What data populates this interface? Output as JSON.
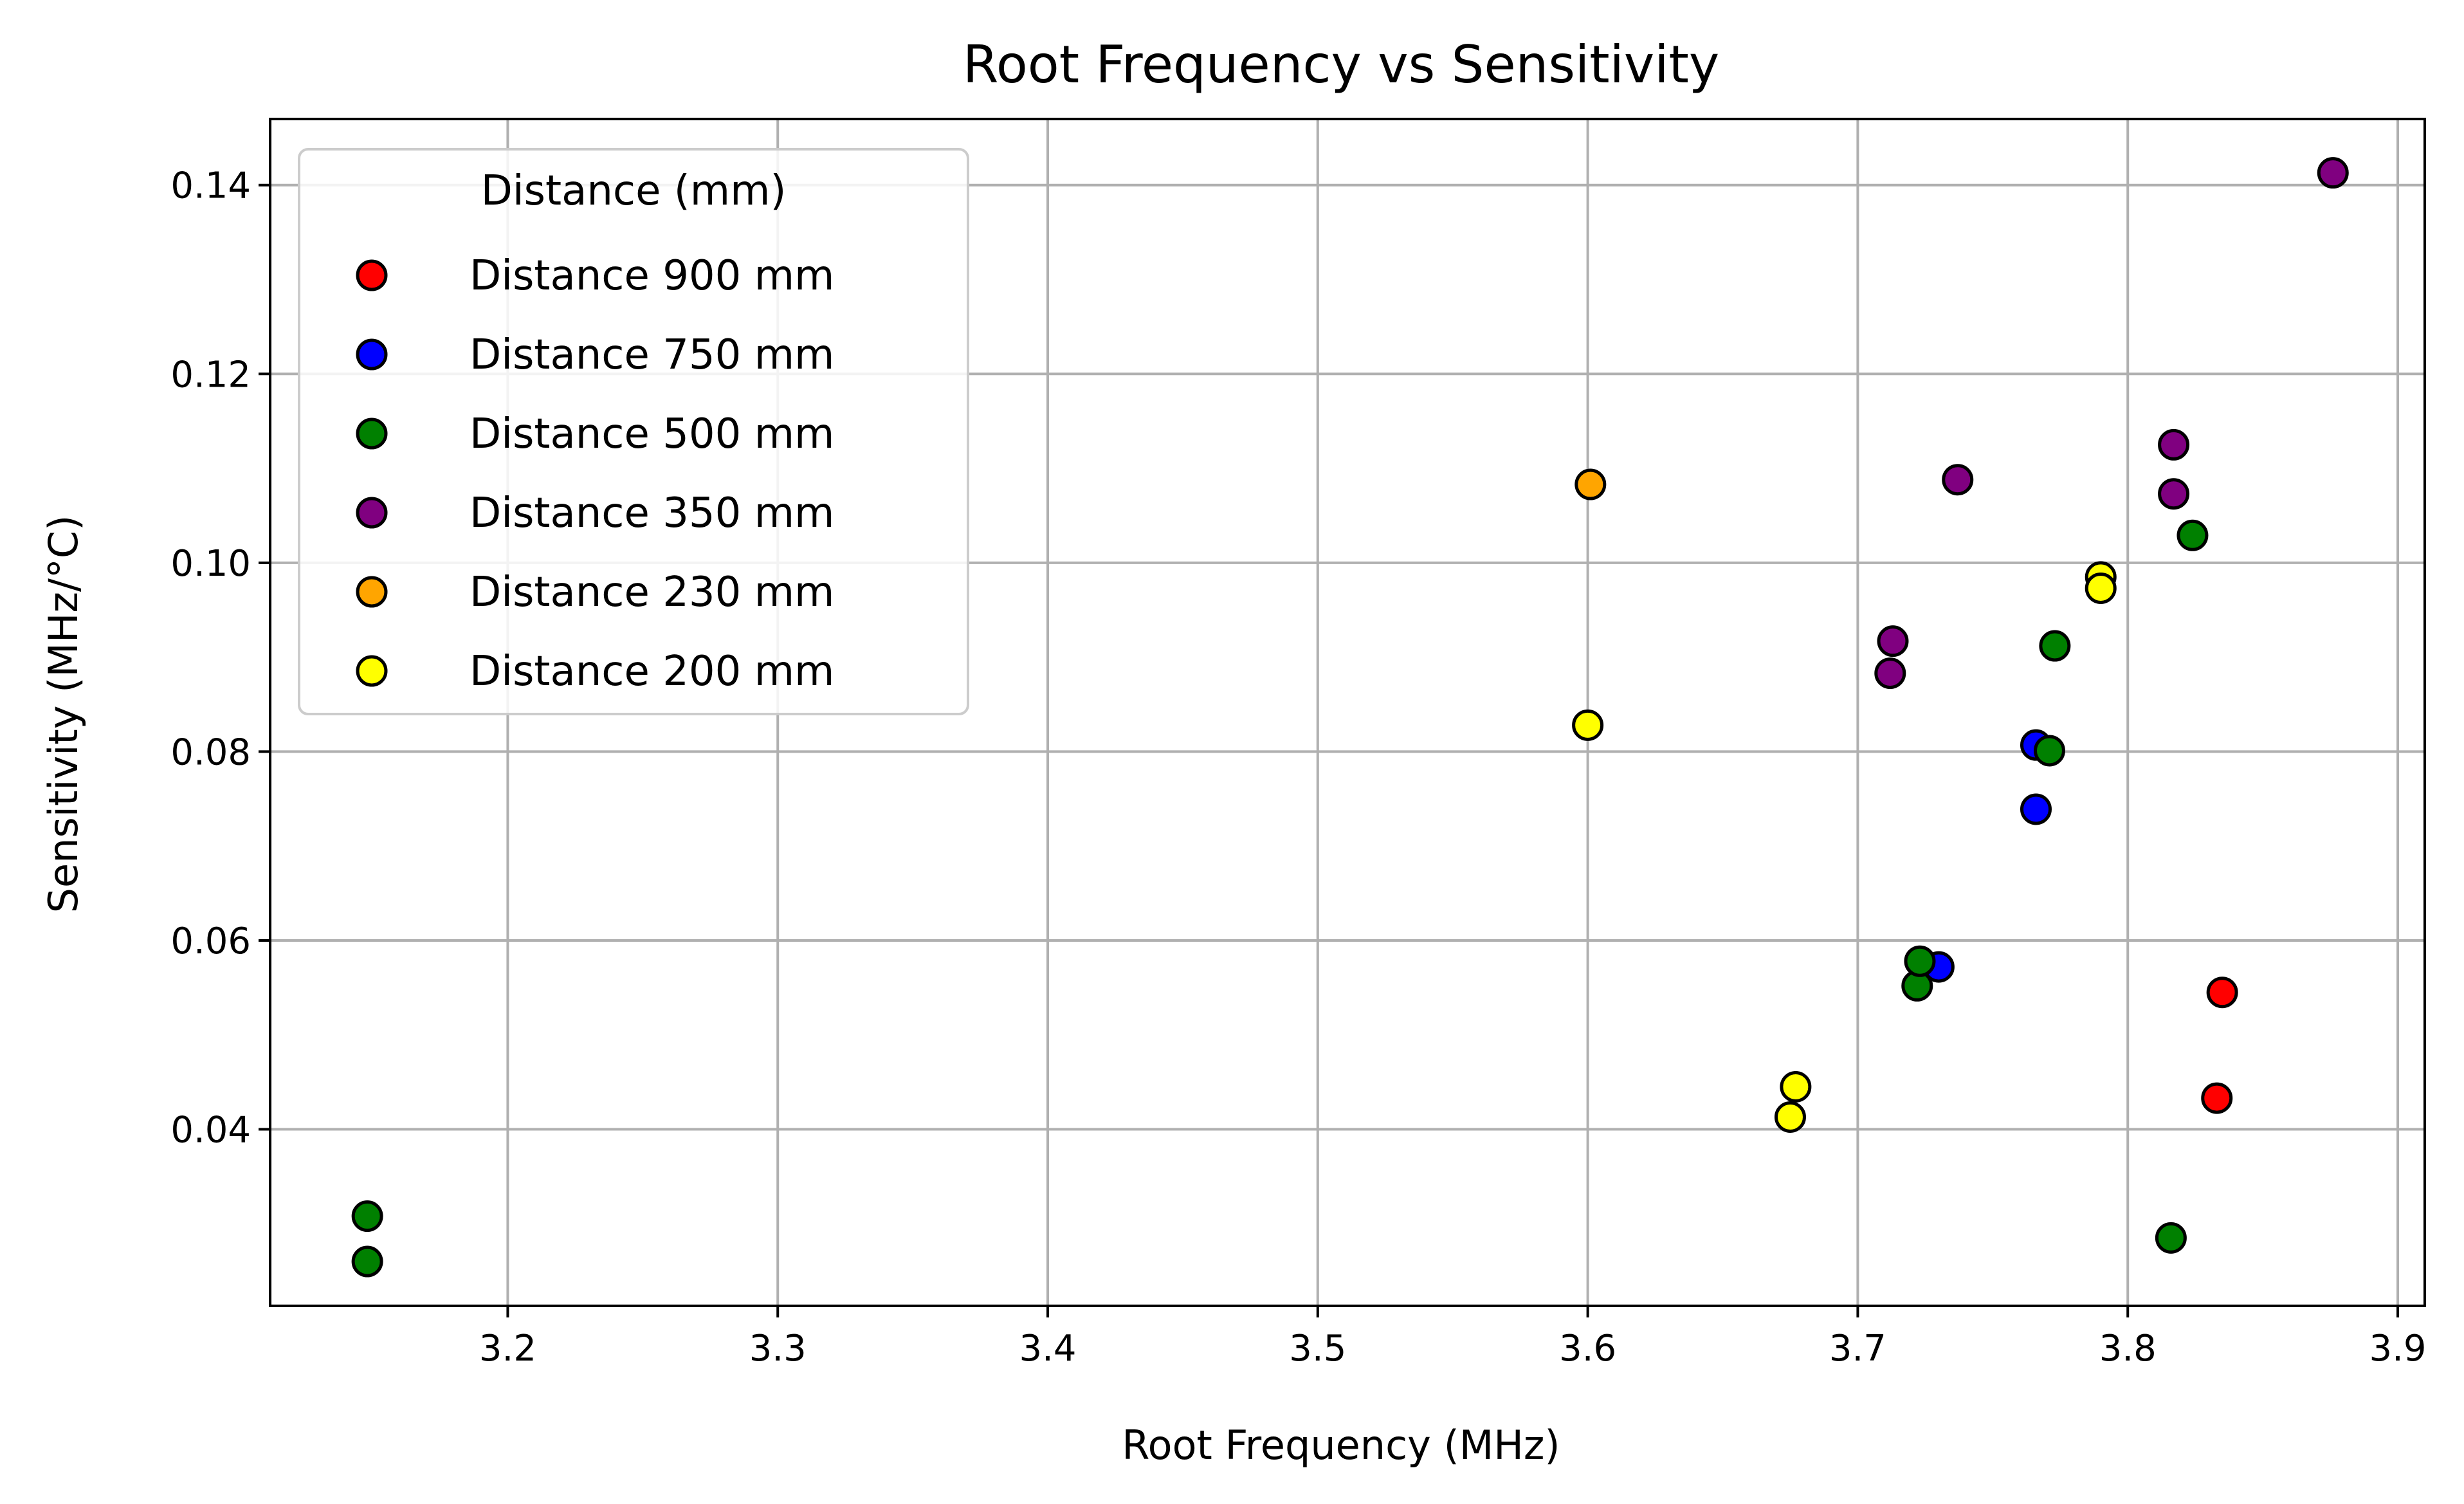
{
  "chart_data": {
    "type": "scatter",
    "title": "Root Frequency vs Sensitivity",
    "xlabel": "Root Frequency (MHz)",
    "ylabel": "Sensitivity (MHz/°C)",
    "xlim": [
      3.112,
      3.91
    ],
    "ylim": [
      0.0213,
      0.147
    ],
    "xticks": [
      3.2,
      3.3,
      3.4,
      3.5,
      3.6,
      3.7,
      3.8,
      3.9
    ],
    "xtick_labels": [
      "3.2",
      "3.3",
      "3.4",
      "3.5",
      "3.6",
      "3.7",
      "3.8",
      "3.9"
    ],
    "yticks": [
      0.04,
      0.06,
      0.08,
      0.1,
      0.12,
      0.14
    ],
    "ytick_labels": [
      "0.04",
      "0.06",
      "0.08",
      "0.10",
      "0.12",
      "0.14"
    ],
    "grid": true,
    "legend_title": "Distance (mm)",
    "legend_position": "top-left",
    "marker_edge_color": "#000000",
    "series": [
      {
        "name": "Distance 900 mm",
        "color": "#ff0000",
        "points": [
          [
            3.835,
            0.0545
          ],
          [
            3.833,
            0.0433
          ]
        ]
      },
      {
        "name": "Distance 750 mm",
        "color": "#0000ff",
        "points": [
          [
            3.766,
            0.0807
          ],
          [
            3.766,
            0.0739
          ],
          [
            3.73,
            0.0572
          ]
        ]
      },
      {
        "name": "Distance 500 mm",
        "color": "#008000",
        "points": [
          [
            3.148,
            0.0308
          ],
          [
            3.148,
            0.026
          ],
          [
            3.722,
            0.0552
          ],
          [
            3.723,
            0.0578
          ],
          [
            3.771,
            0.0801
          ],
          [
            3.773,
            0.0912
          ],
          [
            3.824,
            0.1029
          ],
          [
            3.816,
            0.0285
          ]
        ]
      },
      {
        "name": "Distance 350 mm",
        "color": "#800080",
        "points": [
          [
            3.876,
            0.1413
          ],
          [
            3.817,
            0.1125
          ],
          [
            3.817,
            0.1073
          ],
          [
            3.737,
            0.1088
          ],
          [
            3.713,
            0.0917
          ],
          [
            3.712,
            0.0883
          ]
        ]
      },
      {
        "name": "Distance 230 mm",
        "color": "#ffa500",
        "points": [
          [
            3.601,
            0.1083
          ]
        ]
      },
      {
        "name": "Distance 200 mm",
        "color": "#ffff00",
        "points": [
          [
            3.6,
            0.0828
          ],
          [
            3.79,
            0.0985
          ],
          [
            3.79,
            0.0973
          ],
          [
            3.677,
            0.0445
          ],
          [
            3.675,
            0.0413
          ]
        ]
      }
    ]
  }
}
